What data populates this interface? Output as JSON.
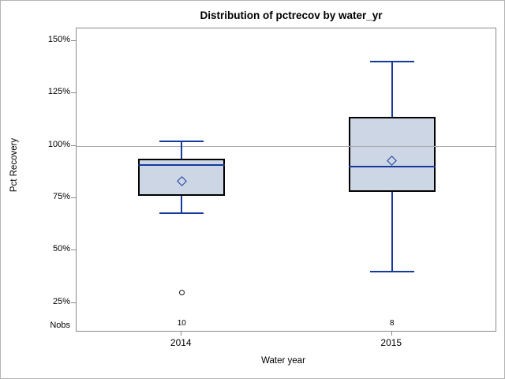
{
  "chart_data": {
    "type": "boxplot",
    "title": "Distribution of pctrecov by water_yr",
    "xlabel": "Water year",
    "ylabel": "Pct Recovery",
    "nobs_row_label": "Nobs",
    "categories": [
      "2014",
      "2015"
    ],
    "y_ticks": [
      {
        "value": 150,
        "label": "150%"
      },
      {
        "value": 125,
        "label": "125%"
      },
      {
        "value": 100,
        "label": "100%"
      },
      {
        "value": 75,
        "label": "75%"
      },
      {
        "value": 50,
        "label": "50%"
      },
      {
        "value": 25,
        "label": "25%"
      }
    ],
    "ylim": [
      11,
      156
    ],
    "reference_line_y": 100,
    "grid": "off",
    "legend": "none",
    "series": [
      {
        "category": "2014",
        "nobs": "10",
        "whisker_low": 68,
        "q1": 76,
        "median": 91,
        "q3": 94,
        "whisker_high": 102,
        "mean": 83,
        "outliers": [
          30
        ]
      },
      {
        "category": "2015",
        "nobs": "8",
        "whisker_low": 40,
        "q1": 78,
        "median": 90,
        "q3": 114,
        "whisker_high": 140,
        "mean": 93,
        "outliers": []
      }
    ],
    "colors": {
      "box_fill": "#ccd6e4",
      "box_border": "#000000",
      "whisker": "#16399d",
      "median": "#16399d",
      "mean_marker": "#16399d",
      "outlier": "#1a1a1a",
      "reference_line": "#a9a9a9",
      "frame": "#8a8a8a",
      "text": "#000000"
    }
  }
}
